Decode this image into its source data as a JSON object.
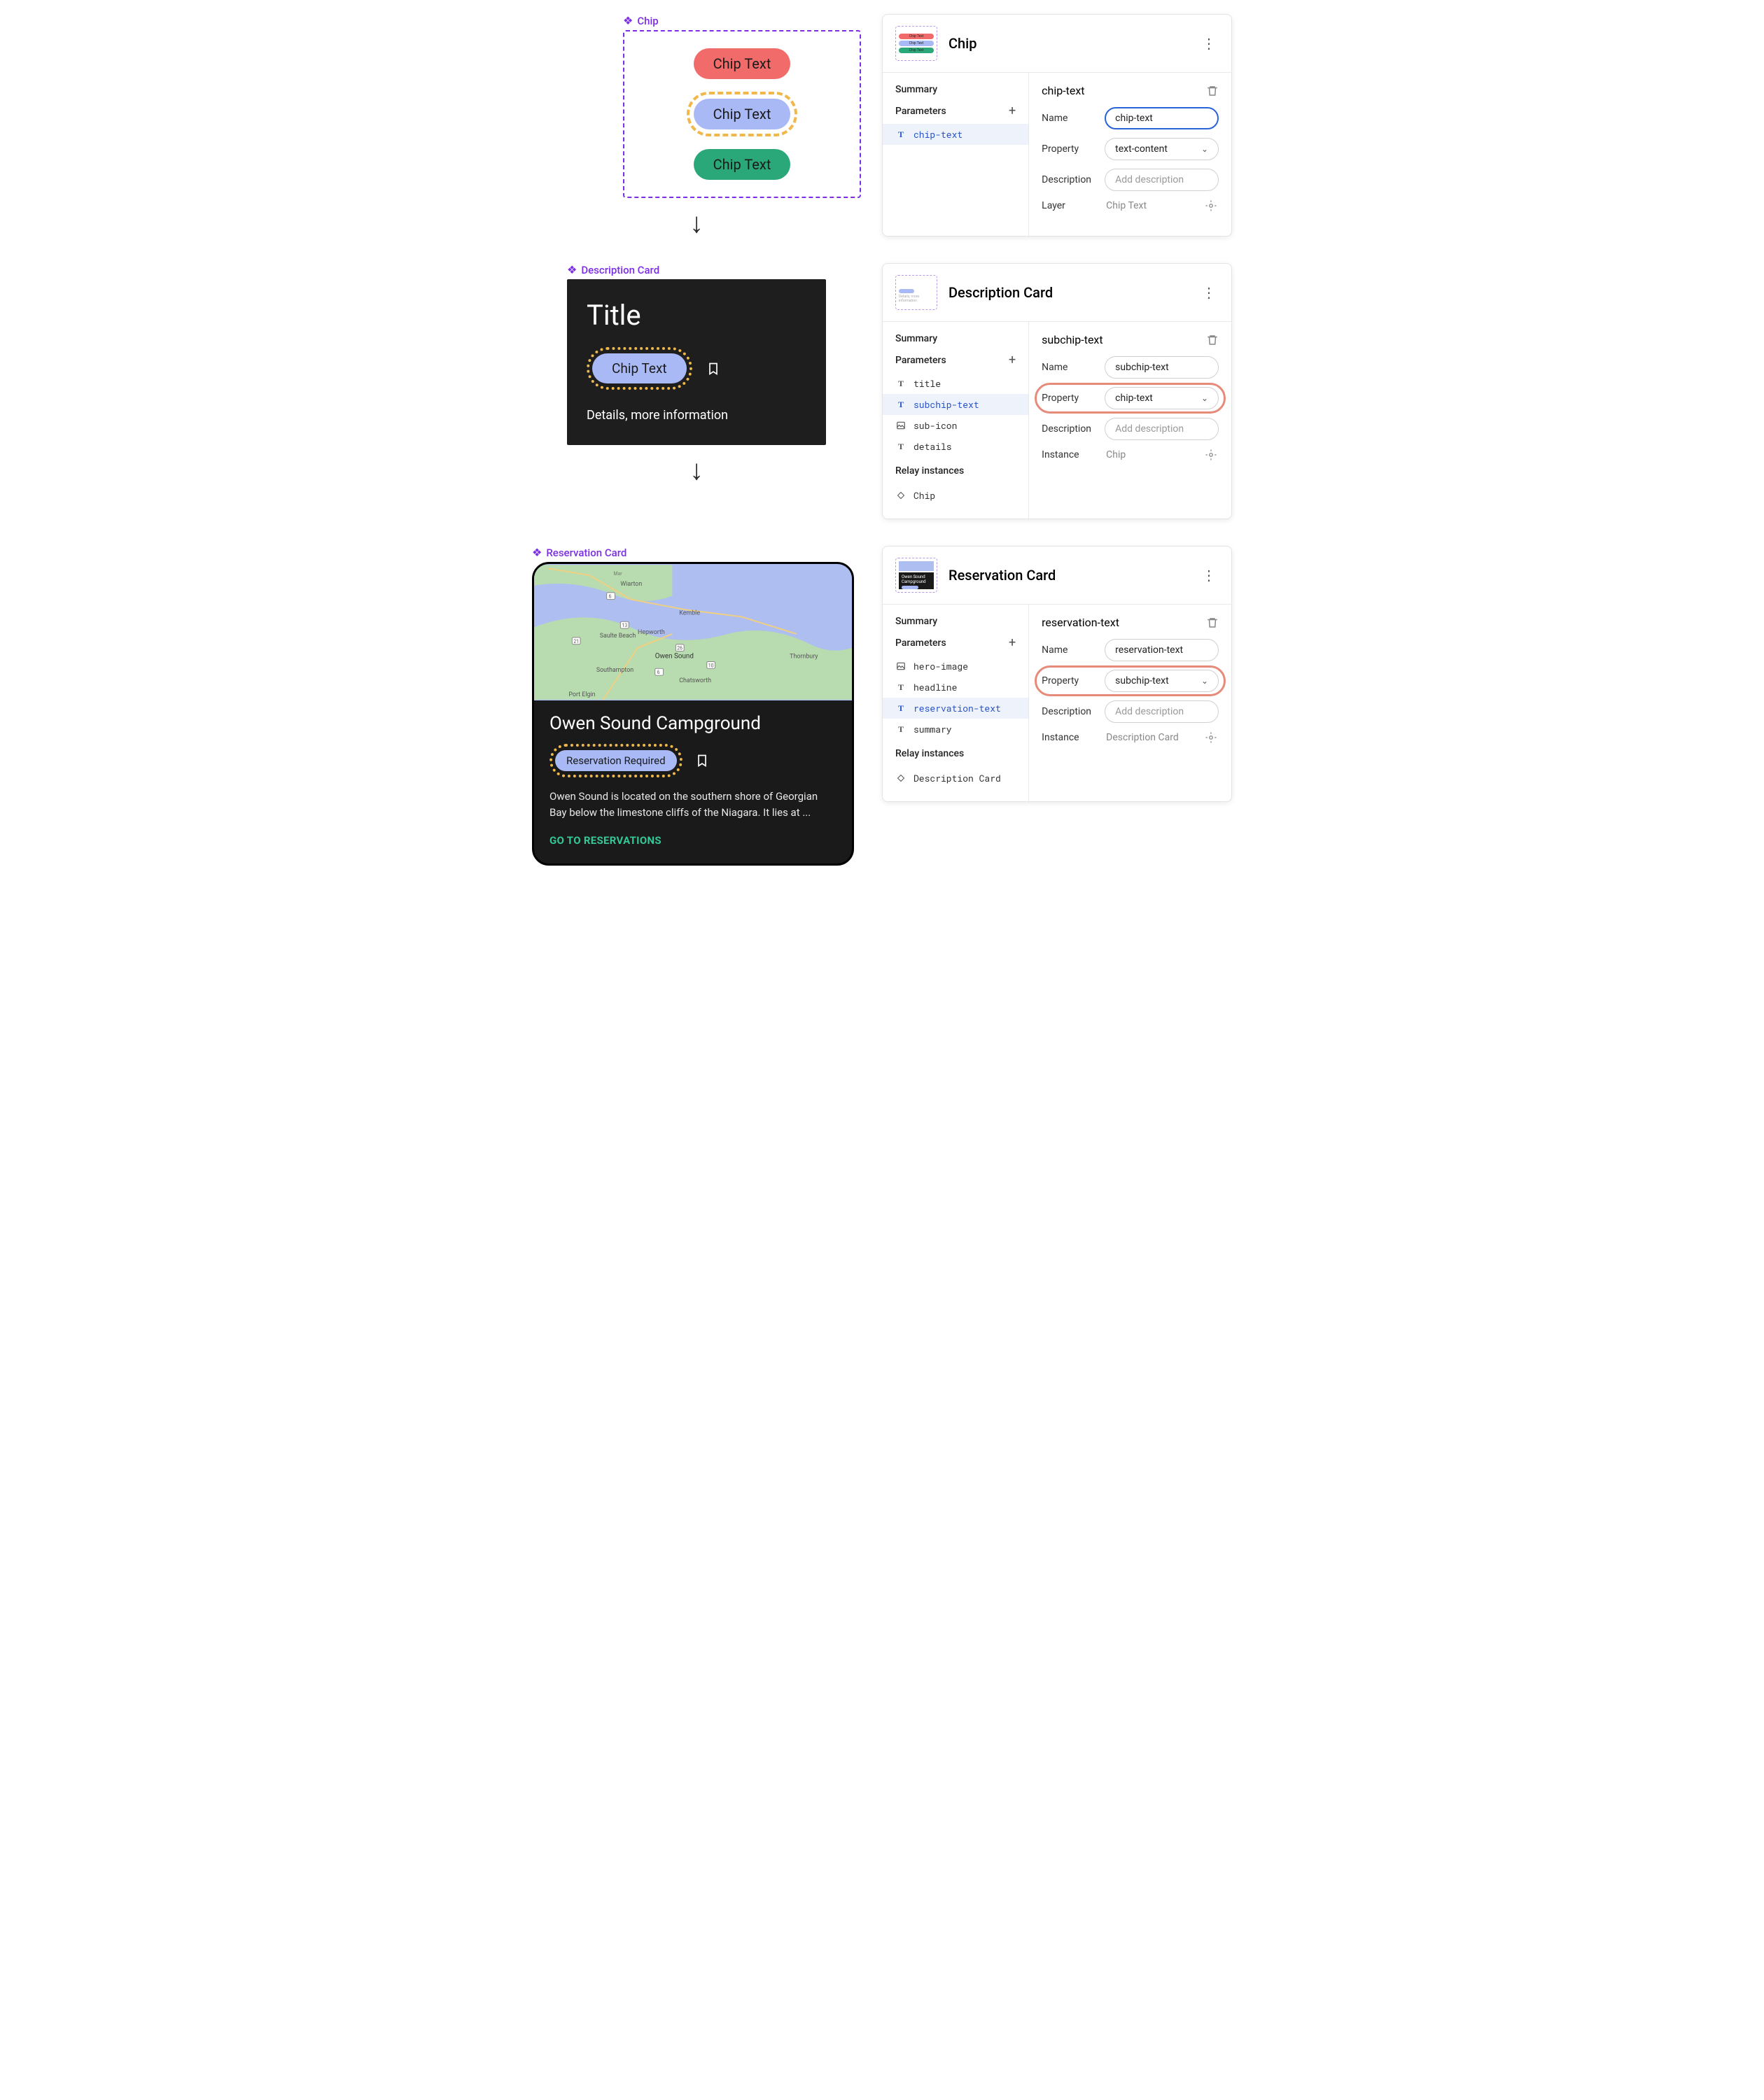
{
  "colors": {
    "purple": "#7c2ee6",
    "chip_red": "#f26b6b",
    "chip_blue": "#a9b9f5",
    "chip_green": "#2ba87a",
    "highlight": "#f0b84a",
    "ring": "#e68a7a",
    "dark": "#1e1e1e",
    "cta": "#35c795"
  },
  "chip_section": {
    "label": "Chip",
    "variants": [
      "Chip Text",
      "Chip Text",
      "Chip Text"
    ]
  },
  "desc_section": {
    "label": "Description Card",
    "title": "Title",
    "chip_text": "Chip Text",
    "details": "Details, more information"
  },
  "res_section": {
    "label": "Reservation Card",
    "headline": "Owen Sound Campground",
    "chip_text": "Reservation Required",
    "summary": "Owen Sound is located on the southern shore of Georgian Bay below the limestone cliffs of the Niagara. It lies at ...",
    "cta": "GO TO RESERVATIONS"
  },
  "panel1": {
    "title": "Chip",
    "summary_label": "Summary",
    "parameters_label": "Parameters",
    "params": [
      {
        "icon": "T",
        "name": "chip-text",
        "selected": true
      }
    ],
    "detail_title": "chip-text",
    "name_label": "Name",
    "name_value": "chip-text",
    "property_label": "Property",
    "property_value": "text-content",
    "description_label": "Description",
    "description_placeholder": "Add description",
    "layer_label": "Layer",
    "layer_value": "Chip Text"
  },
  "panel2": {
    "title": "Description Card",
    "summary_label": "Summary",
    "parameters_label": "Parameters",
    "params": [
      {
        "icon": "T",
        "name": "title"
      },
      {
        "icon": "T",
        "name": "subchip-text",
        "selected": true
      },
      {
        "icon": "image",
        "name": "sub-icon"
      },
      {
        "icon": "T",
        "name": "details"
      }
    ],
    "relay_label": "Relay instances",
    "relays": [
      {
        "icon": "diamond",
        "name": "Chip"
      }
    ],
    "detail_title": "subchip-text",
    "name_label": "Name",
    "name_value": "subchip-text",
    "property_label": "Property",
    "property_value": "chip-text",
    "property_highlighted": true,
    "description_label": "Description",
    "description_placeholder": "Add description",
    "instance_label": "Instance",
    "instance_value": "Chip"
  },
  "panel3": {
    "title": "Reservation Card",
    "summary_label": "Summary",
    "parameters_label": "Parameters",
    "params": [
      {
        "icon": "image",
        "name": "hero-image"
      },
      {
        "icon": "T",
        "name": "headline"
      },
      {
        "icon": "T",
        "name": "reservation-text",
        "selected": true
      },
      {
        "icon": "T",
        "name": "summary"
      }
    ],
    "relay_label": "Relay instances",
    "relays": [
      {
        "icon": "diamond",
        "name": "Description Card"
      }
    ],
    "detail_title": "reservation-text",
    "name_label": "Name",
    "name_value": "reservation-text",
    "property_label": "Property",
    "property_value": "subchip-text",
    "property_highlighted": true,
    "description_label": "Description",
    "description_placeholder": "Add description",
    "instance_label": "Instance",
    "instance_value": "Description Card"
  }
}
